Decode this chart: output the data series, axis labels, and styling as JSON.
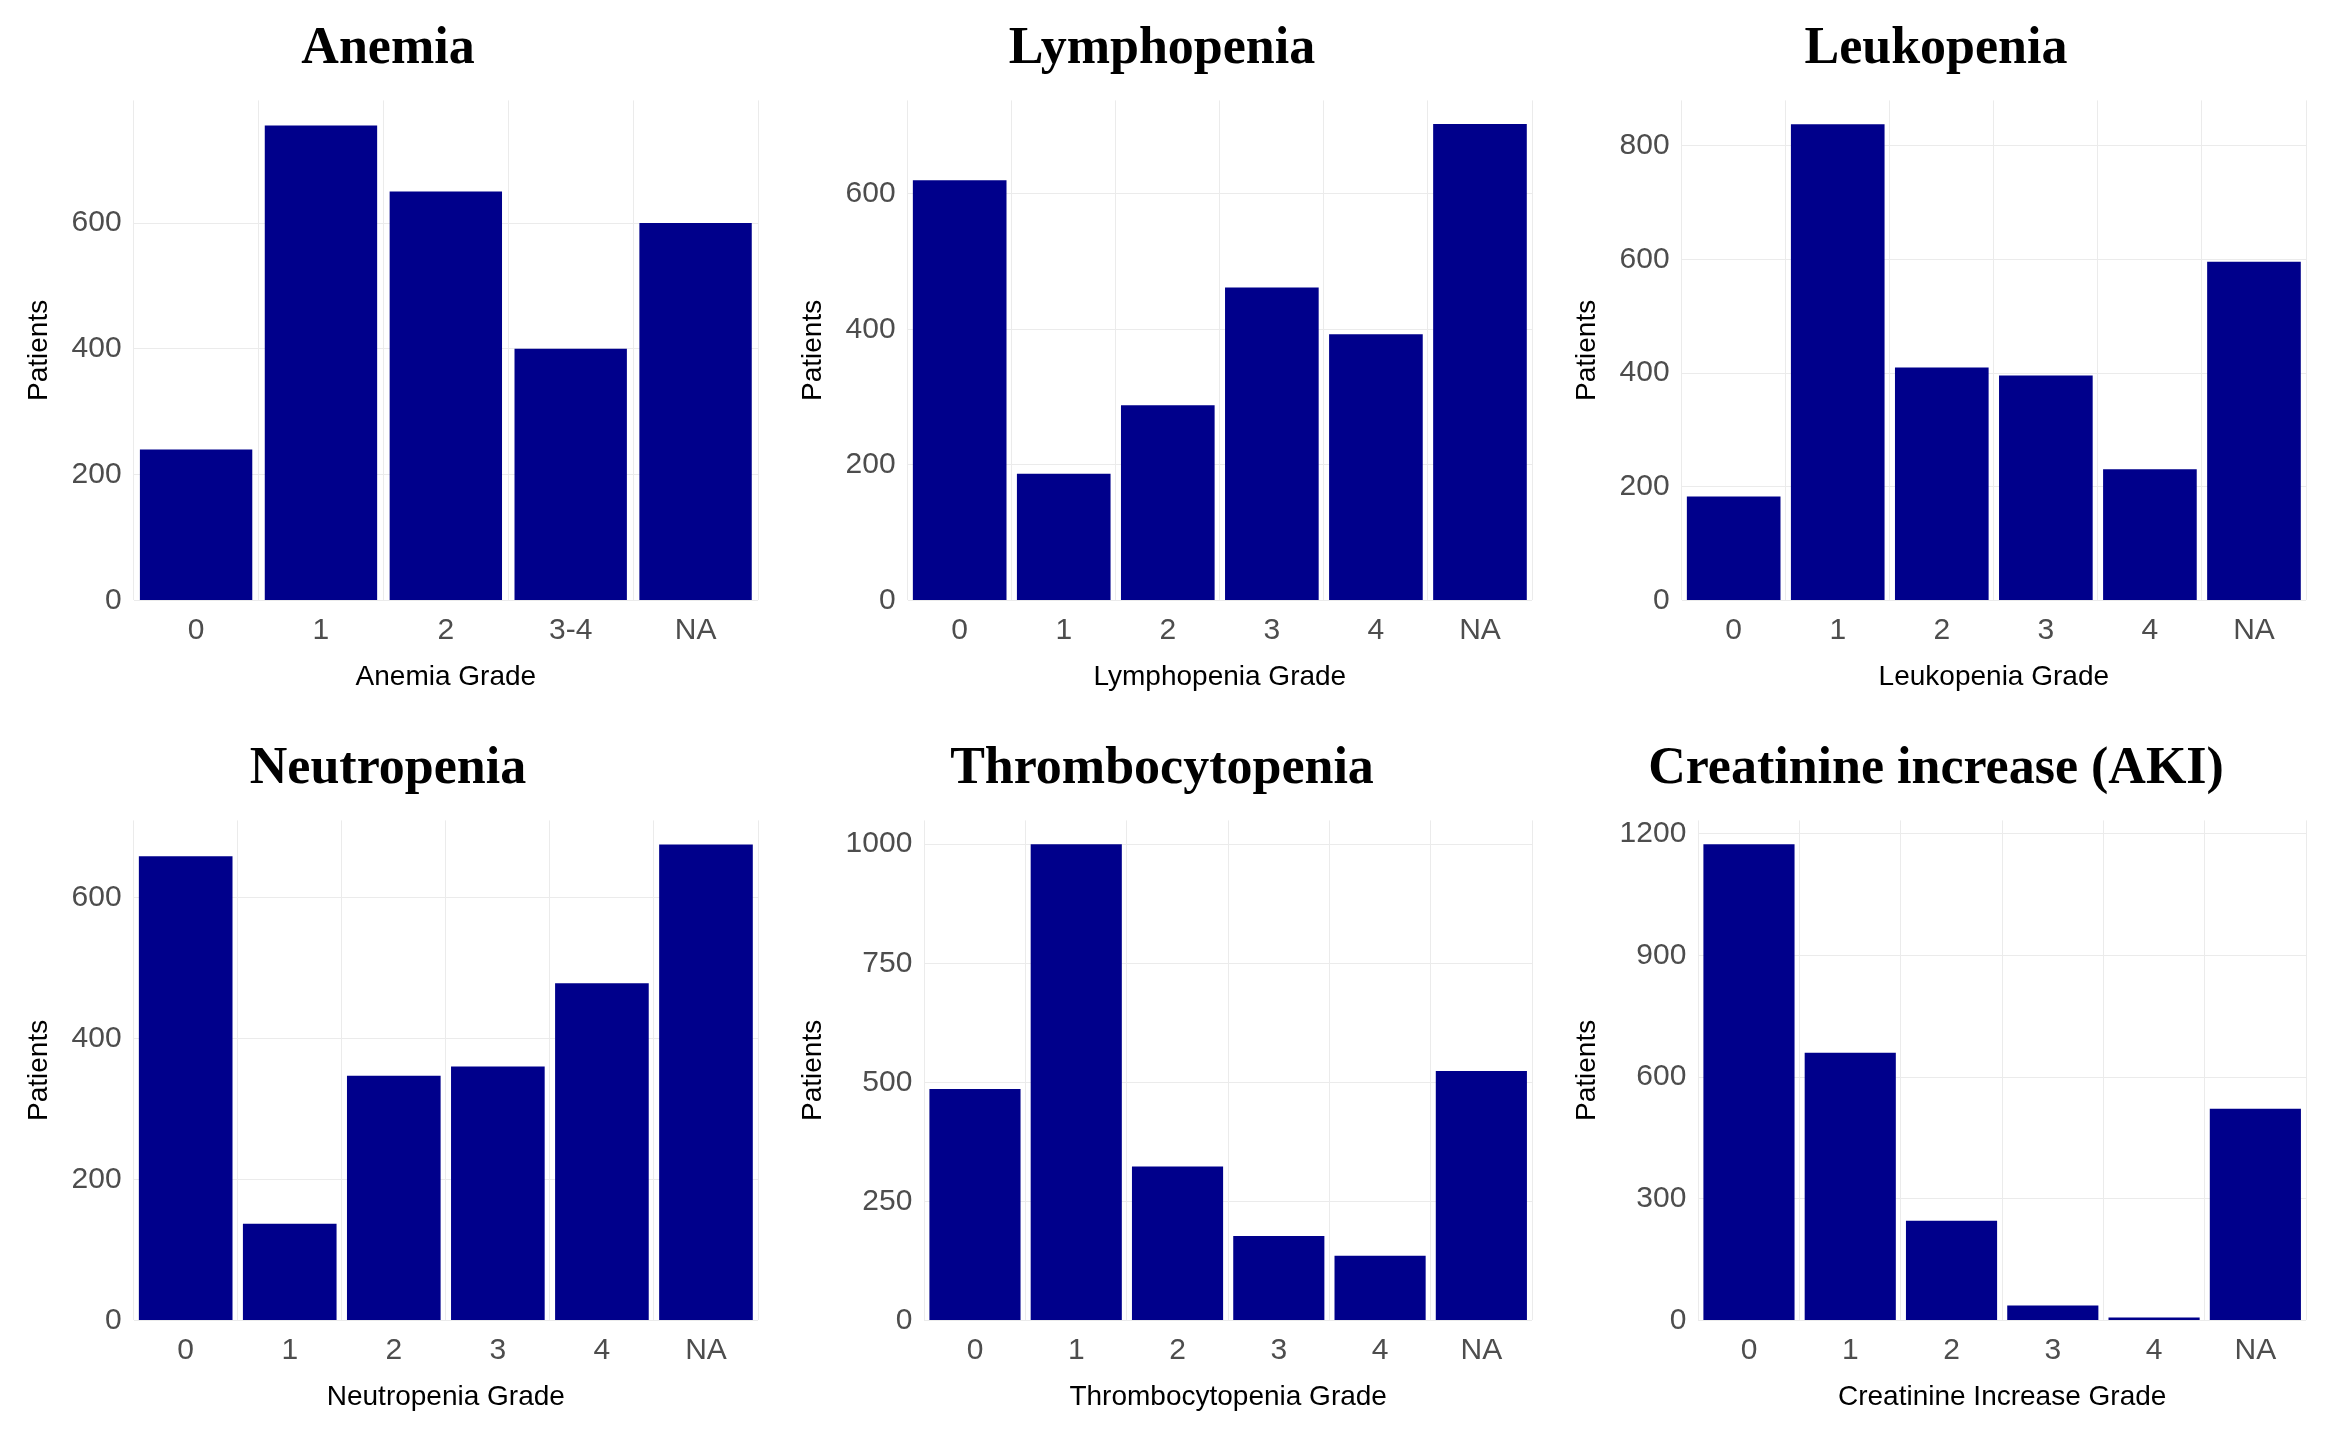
{
  "chart_data": [
    {
      "type": "bar",
      "title": "Anemia",
      "xlabel": "Anemia Grade",
      "ylabel": "Patients",
      "categories": [
        "0",
        "1",
        "2",
        "3-4",
        "NA"
      ],
      "values": [
        240,
        755,
        650,
        400,
        600
      ],
      "color": "#00008b",
      "ylim": [
        0,
        795
      ],
      "yticks": [
        0,
        200,
        400,
        600
      ],
      "grid": true
    },
    {
      "type": "bar",
      "title": "Lymphopenia",
      "xlabel": "Lymphopenia Grade",
      "ylabel": "Patients",
      "categories": [
        "0",
        "1",
        "2",
        "3",
        "4",
        "NA"
      ],
      "values": [
        620,
        187,
        288,
        462,
        393,
        703
      ],
      "color": "#00008b",
      "ylim": [
        0,
        738
      ],
      "yticks": [
        0,
        200,
        400,
        600
      ],
      "grid": true
    },
    {
      "type": "bar",
      "title": "Leukopenia",
      "xlabel": "Leukopenia Grade",
      "ylabel": "Patients",
      "categories": [
        "0",
        "1",
        "2",
        "3",
        "4",
        "NA"
      ],
      "values": [
        183,
        838,
        410,
        396,
        231,
        596
      ],
      "color": "#00008b",
      "ylim": [
        0,
        880
      ],
      "yticks": [
        0,
        200,
        400,
        600,
        800
      ],
      "grid": true
    },
    {
      "type": "bar",
      "title": "Neutropenia",
      "xlabel": "Neutropenia Grade",
      "ylabel": "Patients",
      "categories": [
        "0",
        "1",
        "2",
        "3",
        "4",
        "NA"
      ],
      "values": [
        658,
        137,
        347,
        360,
        478,
        675
      ],
      "color": "#00008b",
      "ylim": [
        0,
        709
      ],
      "yticks": [
        0,
        200,
        400,
        600
      ],
      "grid": true
    },
    {
      "type": "bar",
      "title": "Thrombocytopenia",
      "xlabel": "Thrombocytopenia Grade",
      "ylabel": "Patients",
      "categories": [
        "0",
        "1",
        "2",
        "3",
        "4",
        "NA"
      ],
      "values": [
        486,
        1000,
        323,
        177,
        136,
        524
      ],
      "color": "#00008b",
      "ylim": [
        0,
        1050
      ],
      "yticks": [
        0,
        250,
        500,
        750,
        1000
      ],
      "grid": true
    },
    {
      "type": "bar",
      "title": "Creatinine increase (AKI)",
      "xlabel": "Creatinine Increase Grade",
      "ylabel": "Patients",
      "categories": [
        "0",
        "1",
        "2",
        "3",
        "4",
        "NA"
      ],
      "values": [
        1174,
        660,
        246,
        37,
        7,
        522
      ],
      "color": "#00008b",
      "ylim": [
        0,
        1233
      ],
      "yticks": [
        0,
        300,
        600,
        900,
        1200
      ],
      "grid": true
    }
  ]
}
